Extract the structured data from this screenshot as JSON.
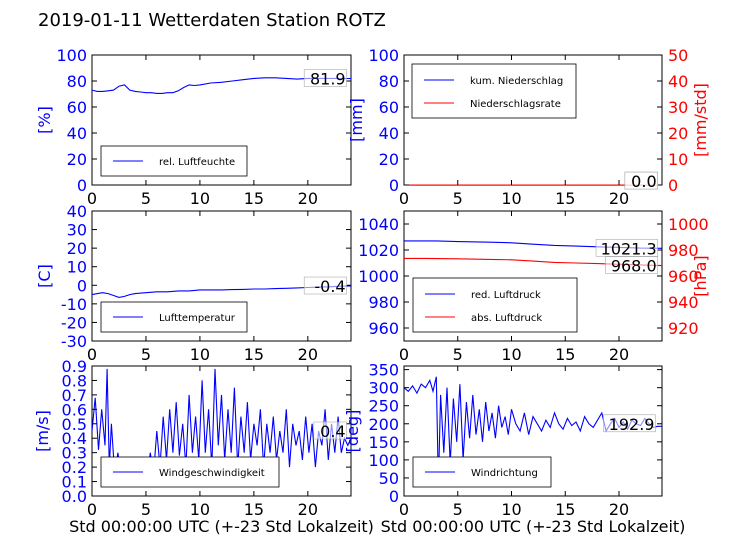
{
  "title": "2019-01-11 Wetterdaten Station ROTZ",
  "colors": {
    "blue": "#0000ff",
    "red": "#ff0000",
    "black": "#000000"
  },
  "chart_data": [
    {
      "id": "humidity",
      "type": "line",
      "xlim": [
        0,
        24
      ],
      "ylim": [
        0,
        100
      ],
      "xticks": [
        0,
        5,
        10,
        15,
        20
      ],
      "yticks": [
        0,
        20,
        40,
        60,
        80,
        100
      ],
      "ylabel": "[%]",
      "legend_loc": "lower-left",
      "series": [
        {
          "name": "rel. Luftfeuchte",
          "color": "#0000ff",
          "axis": "left",
          "x": [
            0,
            0.5,
            1,
            1.5,
            2,
            2.5,
            3,
            3.5,
            4,
            4.5,
            5,
            5.5,
            6,
            6.5,
            7,
            7.5,
            8,
            8.5,
            9,
            9.5,
            10,
            11,
            12,
            13,
            14,
            15,
            16,
            17,
            18,
            19,
            20,
            21,
            22,
            23,
            24
          ],
          "y": [
            73,
            72,
            72,
            72.5,
            73,
            76,
            77,
            73,
            72,
            71.5,
            71,
            71,
            70.5,
            70.5,
            71,
            71,
            72.5,
            75,
            77,
            76.5,
            77,
            78.5,
            79,
            80,
            81,
            82,
            82.5,
            82.5,
            82,
            81.5,
            82,
            82,
            82,
            81.9,
            81.9
          ]
        }
      ],
      "labels": [
        {
          "text": "81.9",
          "x": 23.5,
          "y": 81.9
        }
      ]
    },
    {
      "id": "precip",
      "type": "line",
      "xlim": [
        0,
        24
      ],
      "ylim": [
        0,
        100
      ],
      "y2lim": [
        0,
        50
      ],
      "xticks": [
        0,
        5,
        10,
        15,
        20
      ],
      "yticks": [
        0,
        20,
        40,
        60,
        80,
        100
      ],
      "y2ticks": [
        0,
        10,
        20,
        30,
        40,
        50
      ],
      "ylabel": "[mm]",
      "y2label": "[mm/std]",
      "legend_loc": "upper-left",
      "series": [
        {
          "name": "kum. Niederschlag",
          "color": "#0000ff",
          "axis": "left",
          "x": [
            0,
            24
          ],
          "y": [
            0,
            0
          ]
        },
        {
          "name": "Niederschlagsrate",
          "color": "#ff0000",
          "axis": "right",
          "x": [
            0,
            24
          ],
          "y": [
            0,
            0
          ]
        }
      ],
      "labels": [
        {
          "text": "0.0",
          "x": 23.5,
          "y": 3
        },
        {
          "text": "0.0",
          "x": 23.5,
          "y": 3
        }
      ]
    },
    {
      "id": "temperature",
      "type": "line",
      "xlim": [
        0,
        24
      ],
      "ylim": [
        -30,
        40
      ],
      "xticks": [
        0,
        5,
        10,
        15,
        20
      ],
      "yticks": [
        -30,
        -20,
        -10,
        0,
        10,
        20,
        30,
        40
      ],
      "ylabel": "[C]",
      "legend_loc": "lower-left",
      "series": [
        {
          "name": "Lufttemperatur",
          "color": "#0000ff",
          "axis": "left",
          "x": [
            0,
            0.5,
            1,
            1.5,
            2,
            2.5,
            3,
            3.5,
            4,
            5,
            6,
            7,
            8,
            9,
            10,
            11,
            12,
            13,
            14,
            15,
            16,
            17,
            18,
            19,
            20,
            21,
            22,
            23,
            24
          ],
          "y": [
            -5,
            -4.5,
            -4,
            -4.5,
            -5.5,
            -6.5,
            -6,
            -5,
            -4.5,
            -4,
            -3.5,
            -3.5,
            -3,
            -3,
            -2.5,
            -2.5,
            -2.5,
            -2.3,
            -2.2,
            -2,
            -2,
            -1.8,
            -1.6,
            -1.4,
            -1.2,
            -1,
            -0.8,
            -0.5,
            -0.4
          ]
        }
      ],
      "labels": [
        {
          "text": "-0.4",
          "x": 23.5,
          "y": -0.4
        }
      ]
    },
    {
      "id": "pressure",
      "type": "line",
      "xlim": [
        0,
        24
      ],
      "ylim": [
        950,
        1050
      ],
      "y2lim": [
        910,
        1010
      ],
      "xticks": [
        0,
        5,
        10,
        15,
        20
      ],
      "yticks": [
        960,
        980,
        1000,
        1020,
        1040
      ],
      "y2ticks": [
        920,
        940,
        960,
        980,
        1000
      ],
      "ylabel": "",
      "y2label": "[hPa]",
      "legend_loc": "lower-left",
      "series": [
        {
          "name": "red. Luftdruck",
          "color": "#0000ff",
          "axis": "left",
          "x": [
            0,
            2,
            3,
            5,
            8,
            10,
            12,
            14,
            16,
            18,
            20,
            22,
            24
          ],
          "y": [
            1027,
            1027,
            1027,
            1026.5,
            1026,
            1025.5,
            1024.5,
            1023.5,
            1023,
            1022.5,
            1022,
            1021.5,
            1021.3
          ]
        },
        {
          "name": "abs. Luftdruck",
          "color": "#ff0000",
          "axis": "right",
          "x": [
            0,
            2,
            3,
            5,
            8,
            10,
            12,
            14,
            16,
            18,
            20,
            22,
            24
          ],
          "y": [
            973.5,
            973.5,
            973.4,
            973.2,
            972.8,
            972.5,
            971.5,
            970.5,
            970,
            969.5,
            969,
            968.5,
            968.0
          ]
        }
      ],
      "labels": [
        {
          "text": "1021.3",
          "x": 23.5,
          "y": 1021.3
        },
        {
          "text": "968.0",
          "x": 23.5,
          "y": 1008,
          "axis": "left"
        }
      ]
    },
    {
      "id": "windspeed",
      "type": "line",
      "xlim": [
        0,
        24
      ],
      "ylim": [
        0,
        0.9
      ],
      "xticks": [
        0,
        5,
        10,
        15,
        20
      ],
      "yticks": [
        0.0,
        0.1,
        0.2,
        0.3,
        0.4,
        0.5,
        0.6,
        0.7,
        0.8,
        0.9
      ],
      "ylabel": "[m/s]",
      "xlabel": "Std 00:00:00 UTC (+-23 Std Lokalzeit)",
      "legend_loc": "lower-left",
      "series": [
        {
          "name": "Windgeschwindigkeit",
          "color": "#0000ff",
          "axis": "left",
          "x": [
            0,
            0.3,
            0.6,
            0.9,
            1.2,
            1.4,
            1.6,
            1.8,
            2.1,
            2.4,
            2.7,
            3.0,
            3.3,
            3.6,
            3.9,
            4.2,
            4.5,
            4.8,
            5.1,
            5.4,
            5.7,
            6.0,
            6.3,
            6.6,
            6.9,
            7.2,
            7.5,
            7.8,
            8.1,
            8.4,
            8.7,
            9.0,
            9.3,
            9.6,
            9.9,
            10.2,
            10.5,
            10.8,
            11.1,
            11.4,
            11.7,
            12.0,
            12.3,
            12.6,
            12.9,
            13.2,
            13.5,
            13.8,
            14.1,
            14.4,
            14.7,
            15.0,
            15.3,
            15.6,
            15.9,
            16.2,
            16.5,
            16.8,
            17.1,
            17.4,
            17.7,
            18.0,
            18.3,
            18.6,
            18.9,
            19.2,
            19.5,
            19.8,
            20.1,
            20.4,
            20.7,
            21.0,
            21.3,
            21.6,
            21.9,
            22.2,
            22.5,
            22.8,
            23.1,
            23.4,
            23.7,
            24.0
          ],
          "y": [
            0.45,
            0.68,
            0.32,
            0.6,
            0.35,
            0.88,
            0.2,
            0.5,
            0.15,
            0.3,
            0.12,
            0.25,
            0.1,
            0.18,
            0.08,
            0.22,
            0.1,
            0.14,
            0.12,
            0.3,
            0.15,
            0.45,
            0.2,
            0.55,
            0.25,
            0.6,
            0.3,
            0.65,
            0.28,
            0.5,
            0.2,
            0.7,
            0.3,
            0.55,
            0.25,
            0.8,
            0.3,
            0.6,
            0.2,
            0.88,
            0.35,
            0.7,
            0.25,
            0.6,
            0.3,
            0.75,
            0.2,
            0.55,
            0.3,
            0.65,
            0.25,
            0.5,
            0.35,
            0.6,
            0.2,
            0.5,
            0.3,
            0.55,
            0.25,
            0.45,
            0.3,
            0.6,
            0.2,
            0.5,
            0.35,
            0.45,
            0.25,
            0.55,
            0.3,
            0.5,
            0.2,
            0.45,
            0.35,
            0.6,
            0.25,
            0.5,
            0.3,
            0.55,
            0.3,
            0.4,
            0.35,
            0.4
          ]
        }
      ],
      "labels": [
        {
          "text": "0.4",
          "x": 23.5,
          "y": 0.45
        }
      ]
    },
    {
      "id": "winddir",
      "type": "line",
      "xlim": [
        0,
        24
      ],
      "ylim": [
        0,
        360
      ],
      "xticks": [
        0,
        5,
        10,
        15,
        20
      ],
      "yticks": [
        0,
        50,
        100,
        150,
        200,
        250,
        300,
        350
      ],
      "ylabel": "[deg]",
      "xlabel": "Std 00:00:00 UTC (+-23 Std Lokalzeit)",
      "legend_loc": "lower-left",
      "series": [
        {
          "name": "Windrichtung",
          "color": "#0000ff",
          "axis": "left",
          "x": [
            0,
            0.4,
            0.8,
            1.2,
            1.6,
            2.0,
            2.4,
            2.7,
            3.0,
            3.2,
            3.4,
            3.7,
            4.0,
            4.3,
            4.6,
            4.9,
            5.2,
            5.5,
            5.8,
            6.1,
            6.4,
            6.7,
            7.0,
            7.3,
            7.6,
            7.9,
            8.2,
            8.5,
            8.8,
            9.1,
            9.4,
            9.7,
            10.0,
            10.4,
            10.8,
            11.2,
            11.6,
            12.0,
            12.4,
            12.8,
            13.2,
            13.6,
            14.0,
            14.4,
            14.8,
            15.2,
            15.6,
            16.0,
            16.4,
            16.8,
            17.2,
            17.6,
            18.0,
            18.4,
            18.8,
            19.2,
            19.6,
            20.0,
            20.4,
            20.8,
            21.2,
            21.6,
            22.0,
            22.4,
            22.8,
            23.2,
            23.6,
            24.0
          ],
          "y": [
            300,
            290,
            305,
            285,
            310,
            300,
            320,
            290,
            330,
            30,
            280,
            120,
            300,
            90,
            270,
            150,
            310,
            100,
            260,
            160,
            280,
            170,
            240,
            150,
            260,
            180,
            230,
            160,
            250,
            190,
            220,
            170,
            240,
            200,
            180,
            230,
            170,
            220,
            200,
            180,
            210,
            190,
            230,
            200,
            185,
            215,
            195,
            205,
            180,
            220,
            200,
            190,
            210,
            230,
            180,
            200,
            215,
            190,
            205,
            185,
            210,
            200,
            195,
            215,
            200,
            190,
            193,
            193
          ]
        }
      ],
      "labels": [
        {
          "text": "192.9",
          "x": 23.3,
          "y": 200
        }
      ]
    }
  ]
}
